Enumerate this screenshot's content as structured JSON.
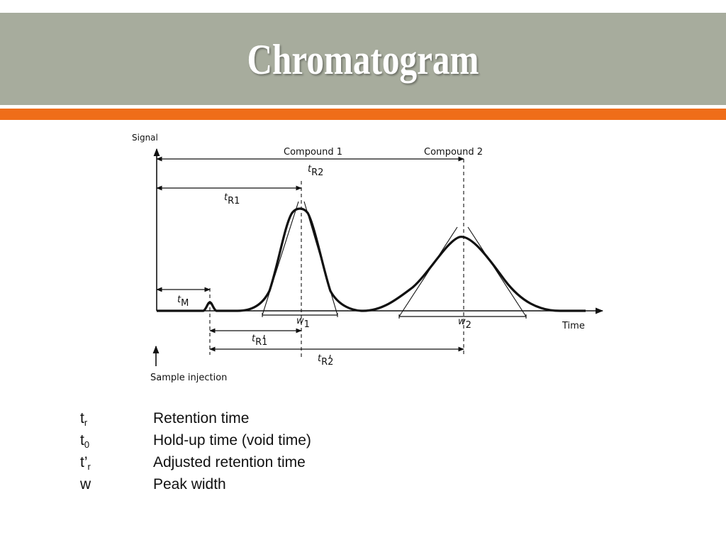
{
  "slide": {
    "title": "Chromatogram",
    "colors": {
      "title_bar": "#a7ac9d",
      "accent": "#ef6d19",
      "title_text": "#ffffff"
    }
  },
  "diagram": {
    "y_axis_label": "Signal",
    "x_axis_label": "Time",
    "compound_1_label": "Compound 1",
    "compound_2_label": "Compound 2",
    "sample_injection_label": "Sample injection",
    "tR1": {
      "main": "t",
      "sub": "R1"
    },
    "tR2": {
      "main": "t",
      "sub": "R2"
    },
    "tM": {
      "main": "t",
      "sub": "M"
    },
    "w1": {
      "main": "w",
      "sub": "1"
    },
    "w2": {
      "main": "w",
      "sub": "2"
    },
    "tR1_adj": {
      "main": "t",
      "sub": "R1"
    },
    "tR2_adj": {
      "main": "t",
      "sub": "R2"
    }
  },
  "legend": [
    {
      "symbol": "t",
      "subscript": "r",
      "description": "Retention time"
    },
    {
      "symbol": "t",
      "subscript": "0",
      "description": "Hold-up time (void time)"
    },
    {
      "symbol": "t’",
      "subscript": "r",
      "description": "Adjusted retention time"
    },
    {
      "symbol": "w",
      "subscript": "",
      "description": "Peak width"
    }
  ]
}
